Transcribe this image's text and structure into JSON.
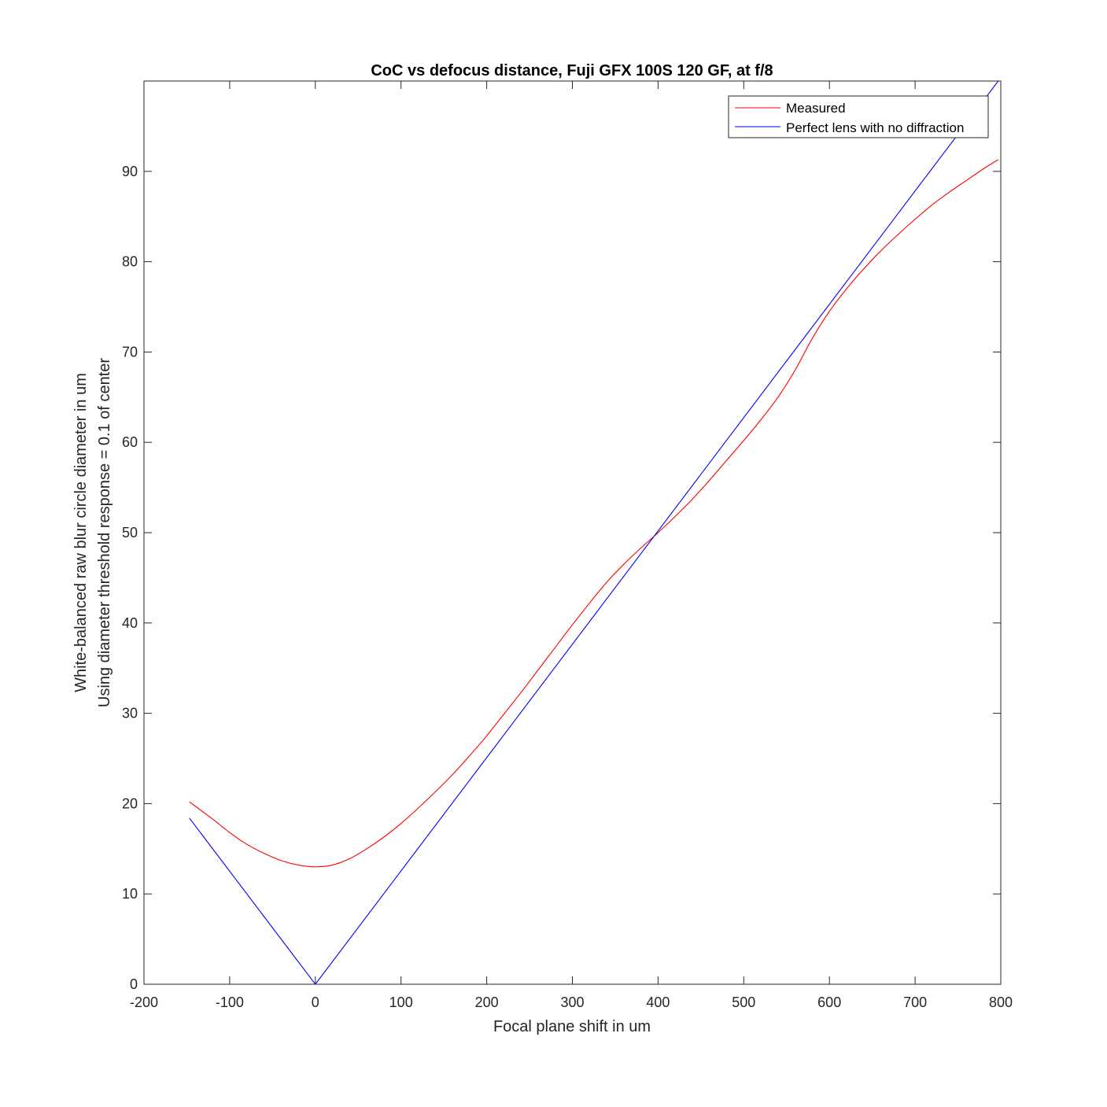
{
  "chart_data": {
    "type": "line",
    "title": "CoC vs defocus distance, Fuji GFX 100S 120 GF, at f/8",
    "xlabel": "Focal plane shift in um",
    "ylabel": [
      "White-balanced raw blur circle diameter in um",
      "Using diameter threshold response = 0.1 of center"
    ],
    "xlim": [
      -200,
      800
    ],
    "ylim": [
      0,
      100
    ],
    "xticks": [
      -200,
      -100,
      0,
      100,
      200,
      300,
      400,
      500,
      600,
      700,
      800
    ],
    "yticks": [
      0,
      10,
      20,
      30,
      40,
      50,
      60,
      70,
      80,
      90
    ],
    "grid": false,
    "legend_position": "top-right",
    "series": [
      {
        "name": "Measured",
        "color": "#ff0000",
        "x": [
          -147,
          -120,
          -100,
          -80,
          -60,
          -40,
          -20,
          0,
          20,
          40,
          60,
          80,
          100,
          120,
          140,
          160,
          180,
          200,
          220,
          240,
          260,
          280,
          300,
          320,
          340,
          360,
          380,
          400,
          420,
          440,
          460,
          480,
          500,
          520,
          540,
          560,
          580,
          600,
          620,
          640,
          660,
          680,
          700,
          720,
          740,
          760,
          780,
          797
        ],
        "y": [
          20.2,
          18.3,
          16.8,
          15.5,
          14.5,
          13.7,
          13.2,
          13.0,
          13.2,
          13.9,
          15.0,
          16.3,
          17.8,
          19.5,
          21.3,
          23.2,
          25.3,
          27.5,
          29.9,
          32.3,
          34.8,
          37.3,
          39.8,
          42.2,
          44.5,
          46.5,
          48.3,
          50.0,
          51.8,
          53.7,
          55.8,
          58.0,
          60.2,
          62.5,
          65.0,
          68.0,
          71.5,
          74.5,
          77.0,
          79.2,
          81.2,
          83.0,
          84.7,
          86.3,
          87.7,
          89.0,
          90.3,
          91.3
        ]
      },
      {
        "name": "Perfect lens with no diffraction",
        "color": "#0000ff",
        "x": [
          -147,
          0,
          797
        ],
        "y": [
          18.4,
          0,
          100
        ]
      }
    ]
  }
}
